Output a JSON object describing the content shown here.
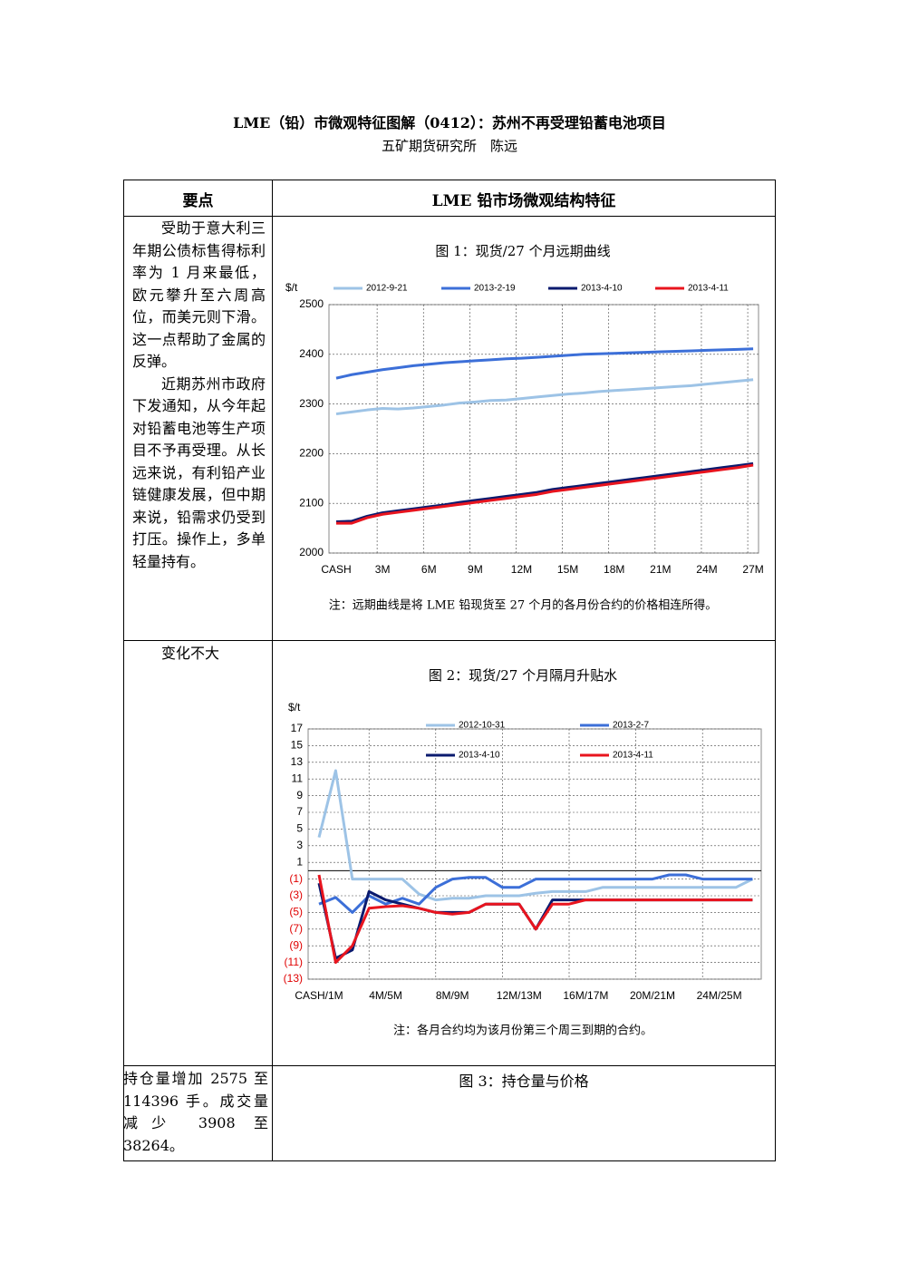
{
  "title": "LME（铅）市微观特征图解（0412）：苏州不再受理铅蓄电池项目",
  "author": "五矿期货研究所　陈远",
  "table": {
    "header": [
      "要点",
      "LME 铅市场微观结构特征"
    ],
    "rows": [
      {
        "points": [
          "受助于意大利三年期公债标售得标利率为 1 月来最低，欧元攀升至六周高位，而美元则下滑。这一点帮助了金属的反弹。",
          "近期苏州市政府下发通知，从今年起对铅蓄电池等生产项目不予再受理。从长远来说，有利铅产业链健康发展，但中期来说，铅需求仍受到打压。操作上，多单轻量持有。"
        ]
      },
      {
        "points": [
          "变化不大"
        ]
      },
      {
        "points": [
          "持仓量增加 2575 至 114396 手。成交量减少 3908 至 38264。"
        ],
        "figure_title": "图 3：持仓量与价格"
      }
    ]
  },
  "chart_data": [
    {
      "type": "line",
      "title": "图 1：现货/27 个月远期曲线",
      "y_label": "$/t",
      "note": "注：远期曲线是将 LME 铅现货至 27 个月的各月份合约的价格相连所得。",
      "categories": [
        "CASH",
        null,
        null,
        "3M",
        null,
        null,
        "6M",
        null,
        null,
        "9M",
        null,
        null,
        "12M",
        null,
        null,
        "15M",
        null,
        null,
        "18M",
        null,
        null,
        "21M",
        null,
        null,
        "24M",
        null,
        null,
        "27M"
      ],
      "series": [
        {
          "name": "2012-9-21",
          "color": "#9dc3e6",
          "values": [
            2280,
            2284,
            2288,
            2291,
            2290,
            2292,
            2295,
            2298,
            2302,
            2304,
            2307,
            2308,
            2311,
            2314,
            2317,
            2320,
            2322,
            2325,
            2327,
            2329,
            2331,
            2333,
            2335,
            2337,
            2340,
            2343,
            2346,
            2349
          ]
        },
        {
          "name": "2013-2-19",
          "color": "#3c6fd8",
          "values": [
            2352,
            2359,
            2364,
            2369,
            2373,
            2377,
            2380,
            2383,
            2385,
            2387,
            2389,
            2391,
            2392,
            2394,
            2396,
            2398,
            2400,
            2401,
            2402,
            2403,
            2404,
            2405,
            2406,
            2407,
            2408,
            2409,
            2410,
            2411
          ]
        },
        {
          "name": "2013-4-10",
          "color": "#0a1a6e",
          "values": [
            2063,
            2064,
            2074,
            2081,
            2085,
            2089,
            2093,
            2097,
            2102,
            2106,
            2110,
            2114,
            2118,
            2122,
            2128,
            2132,
            2136,
            2140,
            2144,
            2148,
            2152,
            2156,
            2160,
            2164,
            2168,
            2172,
            2176,
            2180
          ]
        },
        {
          "name": "2013-4-11",
          "color": "#e8141e",
          "values": [
            2060,
            2060,
            2071,
            2078,
            2082,
            2086,
            2090,
            2094,
            2098,
            2102,
            2106,
            2110,
            2114,
            2118,
            2124,
            2128,
            2132,
            2136,
            2140,
            2144,
            2148,
            2152,
            2156,
            2160,
            2164,
            2168,
            2172,
            2177
          ]
        }
      ],
      "ylim": [
        2000,
        2500
      ],
      "yticks": [
        2000,
        2100,
        2200,
        2300,
        2400,
        2500
      ],
      "grid": true
    },
    {
      "type": "line",
      "title": "图 2：现货/27 个月隔月升贴水",
      "y_label": "$/t",
      "note": "注：各月合约均为该月份第三个周三到期的合约。",
      "categories": [
        "CASH/1M",
        null,
        null,
        null,
        "4M/5M",
        null,
        null,
        null,
        "8M/9M",
        null,
        null,
        null,
        "12M/13M",
        null,
        null,
        null,
        "16M/17M",
        null,
        null,
        null,
        "20M/21M",
        null,
        null,
        null,
        "24M/25M",
        null,
        null
      ],
      "series": [
        {
          "name": "2012-10-31",
          "color": "#9dc3e6",
          "values": [
            4,
            12,
            -1,
            -1,
            -1,
            -1,
            -2.8,
            -3.5,
            -3.3,
            -3.3,
            -3,
            -3,
            -3,
            -2.7,
            -2.5,
            -2.5,
            -2.5,
            -2,
            -2,
            -2,
            -2,
            -2,
            -2,
            -2,
            -2,
            -2,
            -1
          ]
        },
        {
          "name": "2013-2-7",
          "color": "#3c6fd8",
          "values": [
            -4,
            -3.2,
            -5,
            -3,
            -4,
            -3.3,
            -4,
            -2,
            -1,
            -0.8,
            -0.8,
            -2,
            -2,
            -1,
            -1,
            -1,
            -1,
            -1,
            -1,
            -1,
            -1,
            -0.5,
            -0.5,
            -1,
            -1,
            -1,
            -1
          ]
        },
        {
          "name": "2013-4-10",
          "color": "#0a1a6e",
          "values": [
            -1.5,
            -10.5,
            -9.5,
            -2.5,
            -3.5,
            -4,
            -4.5,
            -5,
            -5,
            -5,
            -4,
            -4,
            -4,
            -7,
            -3.5,
            -3.5,
            -3.5,
            -3.5,
            -3.5,
            -3.5,
            -3.5,
            -3.5,
            -3.5,
            -3.5,
            -3.5,
            -3.5,
            -3.5
          ]
        },
        {
          "name": "2013-4-11",
          "color": "#e8141e",
          "values": [
            -0.5,
            -11,
            -9,
            -4.5,
            -4.3,
            -4.2,
            -4.5,
            -5,
            -5.2,
            -5,
            -4,
            -4,
            -4,
            -7,
            -4,
            -4,
            -3.5,
            -3.5,
            -3.5,
            -3.5,
            -3.5,
            -3.5,
            -3.5,
            -3.5,
            -3.5,
            -3.5,
            -3.5
          ]
        }
      ],
      "ylim": [
        -13,
        17
      ],
      "yticks": [
        17,
        15,
        13,
        11,
        9,
        7,
        5,
        3,
        1,
        {
          "value": -1,
          "label": "(1)"
        },
        {
          "value": -3,
          "label": "(3)"
        },
        {
          "value": -5,
          "label": "(5)"
        },
        {
          "value": -7,
          "label": "(7)"
        },
        {
          "value": -9,
          "label": "(9)"
        },
        {
          "value": -11,
          "label": "(11)"
        },
        {
          "value": -13,
          "label": "(13)"
        }
      ],
      "negative_label_color": "#e00000",
      "grid": true
    }
  ]
}
